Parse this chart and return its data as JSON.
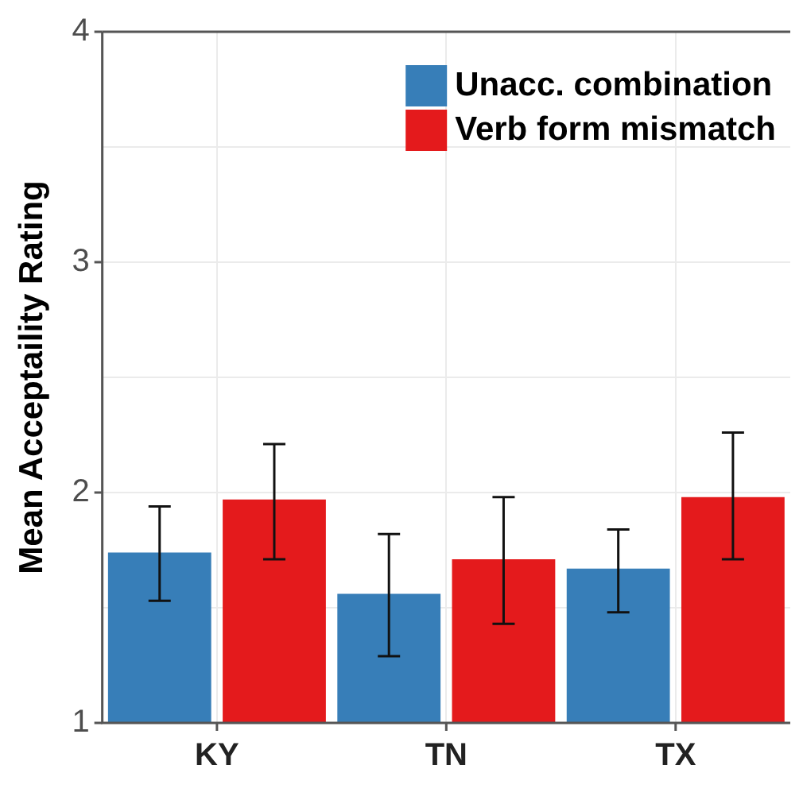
{
  "chart_data": {
    "type": "bar",
    "ylabel": "Mean Acceptaility Rating",
    "categories": [
      "KY",
      "TN",
      "TX"
    ],
    "series": [
      {
        "name": "Unacc. combination",
        "color": "#377eb8",
        "values": [
          1.74,
          1.56,
          1.67
        ],
        "errors": [
          [
            1.53,
            1.94
          ],
          [
            1.29,
            1.82
          ],
          [
            1.48,
            1.84
          ]
        ]
      },
      {
        "name": "Verb form mismatch",
        "color": "#e41a1c",
        "values": [
          1.97,
          1.71,
          1.98
        ],
        "errors": [
          [
            1.71,
            2.21
          ],
          [
            1.43,
            1.98
          ],
          [
            1.71,
            2.26
          ]
        ]
      }
    ],
    "ylim": [
      1,
      4
    ],
    "yticks": [
      1,
      {
        "value": 1.5,
        "label": null
      },
      2,
      {
        "value": 2.5,
        "label": null
      },
      3,
      {
        "value": 3.5,
        "label": null
      },
      4
    ],
    "grid": true,
    "legend": "top right"
  }
}
